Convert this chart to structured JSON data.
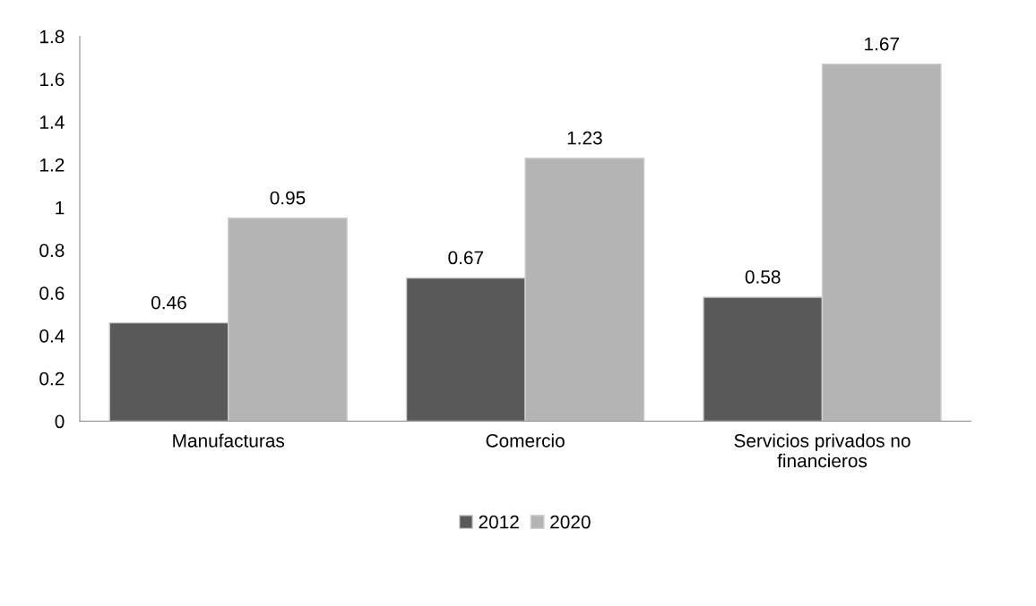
{
  "chart_data": {
    "type": "bar",
    "categories": [
      "Manufacturas",
      "Comercio",
      "Servicios privados no\nfinancieros"
    ],
    "series": [
      {
        "name": "2012",
        "color": "#595959",
        "values": [
          0.46,
          0.67,
          0.58
        ]
      },
      {
        "name": "2020",
        "color": "#b4b4b4",
        "values": [
          0.95,
          1.23,
          1.67
        ]
      }
    ],
    "ylim": [
      0,
      1.8
    ],
    "yticks": [
      0,
      0.2,
      0.4,
      0.6,
      0.8,
      1,
      1.2,
      1.4,
      1.6,
      1.8
    ],
    "data_labels": true,
    "grid": false,
    "legend": "bottom"
  }
}
